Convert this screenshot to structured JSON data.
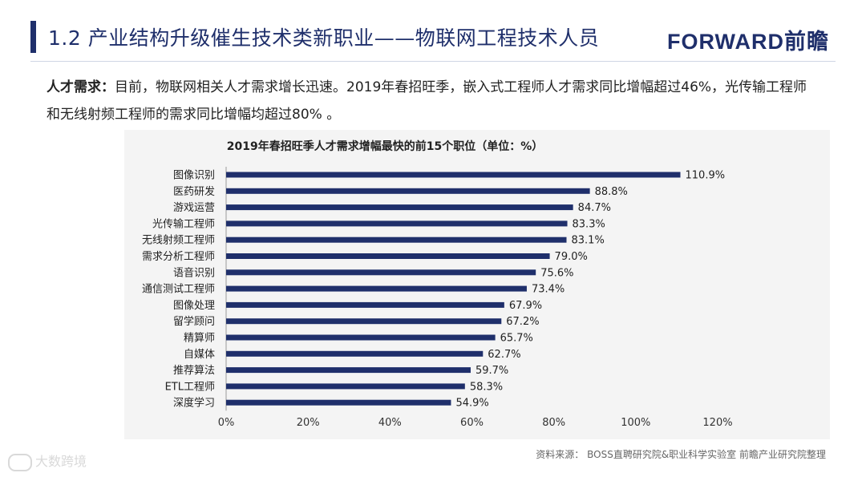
{
  "header": {
    "title": "1.2 产业结构升级催生技术类新职业——物联网工程技术人员",
    "brand": "FORWARD前瞻"
  },
  "intro": {
    "label": "人才需求：",
    "text": "目前，物联网相关人才需求增长迅速。2019年春招旺季，嵌入式工程师人才需求同比增幅超过46%，光传输工程师和无线射频工程师的需求同比增幅均超过80% 。"
  },
  "chart_data": {
    "type": "bar",
    "orientation": "horizontal",
    "title": "2019年春招旺季人才需求增幅最快的前15个职位（单位：%）",
    "categories": [
      "图像识别",
      "医药研发",
      "游戏运营",
      "光传输工程师",
      "无线射频工程师",
      "需求分析工程师",
      "语音识别",
      "通信测试工程师",
      "图像处理",
      "留学顾问",
      "精算师",
      "自媒体",
      "推荐算法",
      "ETL工程师",
      "深度学习"
    ],
    "values": [
      110.9,
      88.8,
      84.7,
      83.3,
      83.1,
      79.0,
      75.6,
      73.4,
      67.9,
      67.2,
      65.7,
      62.7,
      59.7,
      58.3,
      54.9
    ],
    "value_labels": [
      "110.9%",
      "88.8%",
      "84.7%",
      "83.3%",
      "83.1%",
      "79.0%",
      "75.6%",
      "73.4%",
      "67.9%",
      "67.2%",
      "65.7%",
      "62.7%",
      "59.7%",
      "58.3%",
      "54.9%"
    ],
    "xlim": [
      0,
      120
    ],
    "xticks": [
      0,
      20,
      40,
      60,
      80,
      100,
      120
    ],
    "xtick_labels": [
      "0%",
      "20%",
      "40%",
      "60%",
      "80%",
      "100%",
      "120%"
    ],
    "grid": false,
    "bar_color": "#1f2f6b"
  },
  "footer": {
    "source": "资料来源： BOSS直聘研究院&职业科学实验室 前瞻产业研究院整理",
    "watermark": "大数跨境"
  }
}
